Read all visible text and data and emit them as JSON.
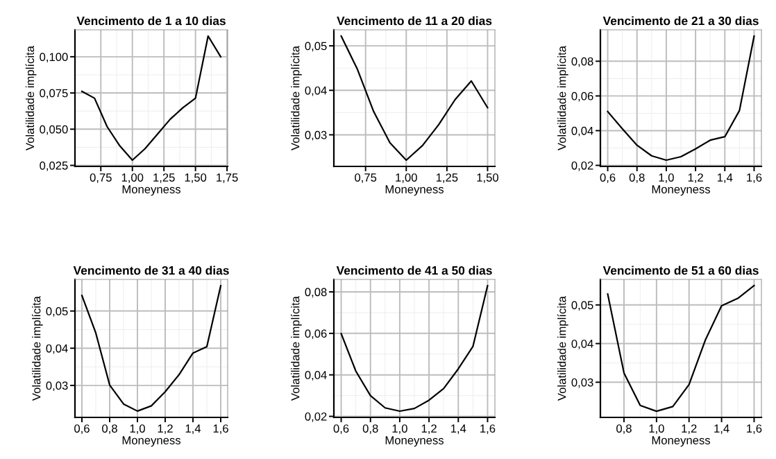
{
  "chart_data": [
    {
      "type": "line",
      "title": "Vencimento de 1 a 10 dias",
      "xlabel": "Moneyness",
      "ylabel": "Volatilidade implícita",
      "grid": true,
      "x": [
        0.6,
        0.7,
        0.8,
        0.9,
        1.0,
        1.1,
        1.2,
        1.3,
        1.4,
        1.5,
        1.6,
        1.7
      ],
      "series": [
        {
          "color": "#000000",
          "values": [
            0.0761,
            0.0714,
            0.0517,
            0.0385,
            0.0286,
            0.0365,
            0.0467,
            0.0569,
            0.0648,
            0.0714,
            0.1143,
            0.1
          ]
        }
      ],
      "xlim": [
        0.545,
        1.755
      ],
      "xticks": [
        {
          "value": 0.75,
          "label": "0,75"
        },
        {
          "value": 1.0,
          "label": "1,00"
        },
        {
          "value": 1.25,
          "label": "1,25"
        },
        {
          "value": 1.5,
          "label": "1,50"
        },
        {
          "value": 1.75,
          "label": "1,75"
        }
      ],
      "ylim": [
        0.0243,
        0.1186
      ],
      "yticks": [
        {
          "value": 0.025,
          "label": "0,025"
        },
        {
          "value": 0.05,
          "label": "0,050"
        },
        {
          "value": 0.075,
          "label": "0,075"
        },
        {
          "value": 0.1,
          "label": "0,100"
        }
      ]
    },
    {
      "type": "line",
      "title": "Vencimento de 11 a 20 dias",
      "xlabel": "Moneyness",
      "ylabel": "Volatilidade implícita",
      "grid": true,
      "x": [
        0.6,
        0.7,
        0.8,
        0.9,
        1.0,
        1.1,
        1.2,
        1.3,
        1.4,
        1.5
      ],
      "series": [
        {
          "color": "#000000",
          "values": [
            0.0522,
            0.0447,
            0.0352,
            0.0282,
            0.0243,
            0.0276,
            0.0323,
            0.0379,
            0.0421,
            0.0361
          ]
        }
      ],
      "xlim": [
        0.555,
        1.545
      ],
      "xticks": [
        {
          "value": 0.75,
          "label": "0,75"
        },
        {
          "value": 1.0,
          "label": "1,00"
        },
        {
          "value": 1.25,
          "label": "1,25"
        },
        {
          "value": 1.5,
          "label": "1,50"
        }
      ],
      "ylim": [
        0.0229,
        0.0536
      ],
      "yticks": [
        {
          "value": 0.03,
          "label": "0,03"
        },
        {
          "value": 0.04,
          "label": "0,04"
        },
        {
          "value": 0.05,
          "label": "0,05"
        }
      ]
    },
    {
      "type": "line",
      "title": "Vencimento de 21 a 30 dias",
      "xlabel": "Moneyness",
      "ylabel": "Volatilidade implícita",
      "grid": true,
      "x": [
        0.6,
        0.7,
        0.8,
        0.9,
        1.0,
        1.1,
        1.2,
        1.3,
        1.4,
        1.5,
        1.6
      ],
      "series": [
        {
          "color": "#000000",
          "values": [
            0.051,
            0.0411,
            0.0316,
            0.0255,
            0.023,
            0.025,
            0.0295,
            0.0345,
            0.0365,
            0.0516,
            0.0945
          ]
        }
      ],
      "xlim": [
        0.55,
        1.65
      ],
      "xticks": [
        {
          "value": 0.6,
          "label": "0,6"
        },
        {
          "value": 0.8,
          "label": "0,8"
        },
        {
          "value": 1.0,
          "label": "1,0"
        },
        {
          "value": 1.2,
          "label": "1,2"
        },
        {
          "value": 1.4,
          "label": "1,4"
        },
        {
          "value": 1.6,
          "label": "1,6"
        }
      ],
      "ylim": [
        0.0194,
        0.0981
      ],
      "yticks": [
        {
          "value": 0.02,
          "label": "0,02"
        },
        {
          "value": 0.04,
          "label": "0,04"
        },
        {
          "value": 0.06,
          "label": "0,06"
        },
        {
          "value": 0.08,
          "label": "0,08"
        }
      ]
    },
    {
      "type": "line",
      "title": "Vencimento de 31 a 40 dias",
      "xlabel": "Moneyness",
      "ylabel": "Volatilidade implícita",
      "grid": true,
      "x": [
        0.6,
        0.7,
        0.8,
        0.9,
        1.0,
        1.1,
        1.2,
        1.3,
        1.4,
        1.5,
        1.6
      ],
      "series": [
        {
          "color": "#000000",
          "values": [
            0.0542,
            0.0441,
            0.0301,
            0.025,
            0.0231,
            0.0245,
            0.0283,
            0.0329,
            0.0387,
            0.0404,
            0.0568
          ]
        }
      ],
      "xlim": [
        0.55,
        1.65
      ],
      "xticks": [
        {
          "value": 0.6,
          "label": "0,6"
        },
        {
          "value": 0.8,
          "label": "0,8"
        },
        {
          "value": 1.0,
          "label": "1,0"
        },
        {
          "value": 1.2,
          "label": "1,2"
        },
        {
          "value": 1.4,
          "label": "1,4"
        },
        {
          "value": 1.6,
          "label": "1,6"
        }
      ],
      "ylim": [
        0.0214,
        0.0585
      ],
      "yticks": [
        {
          "value": 0.03,
          "label": "0,03"
        },
        {
          "value": 0.04,
          "label": "0,04"
        },
        {
          "value": 0.05,
          "label": "0,05"
        }
      ]
    },
    {
      "type": "line",
      "title": "Vencimento de 41 a 50 dias",
      "xlabel": "Moneyness",
      "ylabel": "Volatilidade implícita",
      "grid": true,
      "x": [
        0.6,
        0.7,
        0.8,
        0.9,
        1.0,
        1.1,
        1.2,
        1.3,
        1.4,
        1.5,
        1.6
      ],
      "series": [
        {
          "color": "#000000",
          "values": [
            0.0599,
            0.0418,
            0.03,
            0.0241,
            0.0225,
            0.0238,
            0.0278,
            0.0334,
            0.0429,
            0.0537,
            0.083
          ]
        }
      ],
      "xlim": [
        0.55,
        1.65
      ],
      "xticks": [
        {
          "value": 0.6,
          "label": "0,6"
        },
        {
          "value": 0.8,
          "label": "0,8"
        },
        {
          "value": 1.0,
          "label": "1,0"
        },
        {
          "value": 1.2,
          "label": "1,2"
        },
        {
          "value": 1.4,
          "label": "1,4"
        },
        {
          "value": 1.6,
          "label": "1,6"
        }
      ],
      "ylim": [
        0.0195,
        0.086
      ],
      "yticks": [
        {
          "value": 0.02,
          "label": "0,02"
        },
        {
          "value": 0.04,
          "label": "0,04"
        },
        {
          "value": 0.06,
          "label": "0,06"
        },
        {
          "value": 0.08,
          "label": "0,08"
        }
      ]
    },
    {
      "type": "line",
      "title": "Vencimento de 51 a 60 dias",
      "xlabel": "Moneyness",
      "ylabel": "Volatilidade implícita",
      "grid": true,
      "x": [
        0.7,
        0.8,
        0.9,
        1.0,
        1.1,
        1.2,
        1.3,
        1.4,
        1.5,
        1.6
      ],
      "series": [
        {
          "color": "#000000",
          "values": [
            0.0528,
            0.0324,
            0.024,
            0.0225,
            0.0237,
            0.0294,
            0.0409,
            0.0498,
            0.0517,
            0.055
          ]
        }
      ],
      "xlim": [
        0.655,
        1.645
      ],
      "xticks": [
        {
          "value": 0.8,
          "label": "0,8"
        },
        {
          "value": 1.0,
          "label": "1,0"
        },
        {
          "value": 1.2,
          "label": "1,2"
        },
        {
          "value": 1.4,
          "label": "1,4"
        },
        {
          "value": 1.6,
          "label": "1,6"
        }
      ],
      "ylim": [
        0.0209,
        0.0566
      ],
      "yticks": [
        {
          "value": 0.03,
          "label": "0,03"
        },
        {
          "value": 0.04,
          "label": "0,04"
        },
        {
          "value": 0.05,
          "label": "0,05"
        }
      ]
    }
  ]
}
